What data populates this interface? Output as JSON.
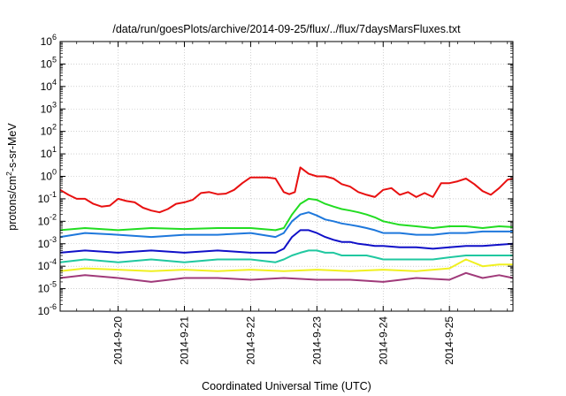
{
  "chart_data": {
    "type": "line",
    "title": "/data/run/goesPlots/archive/2014-09-25/flux/../flux/7daysMarsFluxes.txt",
    "xlabel": "Coordinated Universal Time (UTC)",
    "ylabel": {
      "prefix": "protons/cm",
      "sup": "2",
      "suffix": "-s-sr-MeV"
    },
    "x_range": [
      "2014-09-19T03:00",
      "2014-09-25T23:00"
    ],
    "x_ticks": [
      "2014-9-20",
      "2014-9-21",
      "2014-9-22",
      "2014-9-23",
      "2014-9-24",
      "2014-9-25"
    ],
    "y_scale": "log",
    "ylim": [
      1e-06,
      1000000.0
    ],
    "y_ticks": [
      {
        "base": "10",
        "exp": "-6"
      },
      {
        "base": "10",
        "exp": "-5"
      },
      {
        "base": "10",
        "exp": "-4"
      },
      {
        "base": "10",
        "exp": "-3"
      },
      {
        "base": "10",
        "exp": "-2"
      },
      {
        "base": "10",
        "exp": "-1"
      },
      {
        "base": "10",
        "exp": "0"
      },
      {
        "base": "10",
        "exp": "1"
      },
      {
        "base": "10",
        "exp": "2"
      },
      {
        "base": "10",
        "exp": "3"
      },
      {
        "base": "10",
        "exp": "4"
      },
      {
        "base": "10",
        "exp": "5"
      },
      {
        "base": "10",
        "exp": "6"
      }
    ],
    "grid": true,
    "legend": "none",
    "series": [
      {
        "color": "#e81010",
        "x": [
          "2014-09-19T03:00",
          "2014-09-19T06:00",
          "2014-09-19T09:00",
          "2014-09-19T12:00",
          "2014-09-19T15:00",
          "2014-09-19T18:00",
          "2014-09-19T21:00",
          "2014-09-20T00:00",
          "2014-09-20T03:00",
          "2014-09-20T06:00",
          "2014-09-20T09:00",
          "2014-09-20T12:00",
          "2014-09-20T15:00",
          "2014-09-20T18:00",
          "2014-09-20T21:00",
          "2014-09-21T00:00",
          "2014-09-21T03:00",
          "2014-09-21T06:00",
          "2014-09-21T09:00",
          "2014-09-21T12:00",
          "2014-09-21T15:00",
          "2014-09-21T18:00",
          "2014-09-21T21:00",
          "2014-09-22T00:00",
          "2014-09-22T03:00",
          "2014-09-22T06:00",
          "2014-09-22T09:00",
          "2014-09-22T12:00",
          "2014-09-22T14:00",
          "2014-09-22T16:00",
          "2014-09-22T18:00",
          "2014-09-22T21:00",
          "2014-09-23T00:00",
          "2014-09-23T03:00",
          "2014-09-23T06:00",
          "2014-09-23T09:00",
          "2014-09-23T12:00",
          "2014-09-23T15:00",
          "2014-09-23T18:00",
          "2014-09-23T21:00",
          "2014-09-24T00:00",
          "2014-09-24T03:00",
          "2014-09-24T06:00",
          "2014-09-24T09:00",
          "2014-09-24T12:00",
          "2014-09-24T15:00",
          "2014-09-24T18:00",
          "2014-09-24T21:00",
          "2014-09-25T00:00",
          "2014-09-25T03:00",
          "2014-09-25T06:00",
          "2014-09-25T09:00",
          "2014-09-25T12:00",
          "2014-09-25T15:00",
          "2014-09-25T18:00",
          "2014-09-25T21:00",
          "2014-09-25T23:00"
        ],
        "y": [
          0.25,
          0.15,
          0.1,
          0.1,
          0.06,
          0.045,
          0.05,
          0.1,
          0.08,
          0.07,
          0.04,
          0.03,
          0.025,
          0.035,
          0.06,
          0.07,
          0.09,
          0.18,
          0.2,
          0.16,
          0.17,
          0.25,
          0.5,
          0.9,
          0.9,
          0.9,
          0.8,
          0.2,
          0.16,
          0.2,
          2.5,
          1.3,
          1.0,
          1.0,
          0.8,
          0.45,
          0.35,
          0.2,
          0.15,
          0.12,
          0.25,
          0.3,
          0.15,
          0.2,
          0.12,
          0.18,
          0.12,
          0.5,
          0.5,
          0.6,
          0.8,
          0.45,
          0.22,
          0.15,
          0.3,
          0.7,
          0.8
        ]
      },
      {
        "color": "#22dd22",
        "x": [
          "2014-09-19T03:00",
          "2014-09-19T12:00",
          "2014-09-20T00:00",
          "2014-09-20T12:00",
          "2014-09-21T00:00",
          "2014-09-21T12:00",
          "2014-09-22T00:00",
          "2014-09-22T09:00",
          "2014-09-22T12:00",
          "2014-09-22T15:00",
          "2014-09-22T18:00",
          "2014-09-22T21:00",
          "2014-09-23T00:00",
          "2014-09-23T03:00",
          "2014-09-23T06:00",
          "2014-09-23T09:00",
          "2014-09-23T12:00",
          "2014-09-23T15:00",
          "2014-09-23T18:00",
          "2014-09-23T21:00",
          "2014-09-24T00:00",
          "2014-09-24T06:00",
          "2014-09-24T12:00",
          "2014-09-24T18:00",
          "2014-09-25T00:00",
          "2014-09-25T06:00",
          "2014-09-25T12:00",
          "2014-09-25T18:00",
          "2014-09-25T23:00"
        ],
        "y": [
          0.004,
          0.005,
          0.004,
          0.005,
          0.0045,
          0.005,
          0.005,
          0.004,
          0.005,
          0.02,
          0.06,
          0.1,
          0.09,
          0.06,
          0.045,
          0.035,
          0.03,
          0.025,
          0.02,
          0.015,
          0.01,
          0.007,
          0.006,
          0.005,
          0.006,
          0.006,
          0.005,
          0.006,
          0.0055
        ]
      },
      {
        "color": "#1e78dc",
        "x": [
          "2014-09-19T03:00",
          "2014-09-19T12:00",
          "2014-09-20T00:00",
          "2014-09-20T12:00",
          "2014-09-21T00:00",
          "2014-09-21T12:00",
          "2014-09-22T00:00",
          "2014-09-22T09:00",
          "2014-09-22T12:00",
          "2014-09-22T15:00",
          "2014-09-22T18:00",
          "2014-09-22T21:00",
          "2014-09-23T00:00",
          "2014-09-23T03:00",
          "2014-09-23T06:00",
          "2014-09-23T09:00",
          "2014-09-23T12:00",
          "2014-09-23T15:00",
          "2014-09-23T18:00",
          "2014-09-23T21:00",
          "2014-09-24T00:00",
          "2014-09-24T06:00",
          "2014-09-24T12:00",
          "2014-09-24T18:00",
          "2014-09-25T00:00",
          "2014-09-25T06:00",
          "2014-09-25T12:00",
          "2014-09-25T18:00",
          "2014-09-25T23:00"
        ],
        "y": [
          0.002,
          0.003,
          0.0025,
          0.002,
          0.0025,
          0.0025,
          0.003,
          0.002,
          0.003,
          0.01,
          0.02,
          0.025,
          0.018,
          0.012,
          0.01,
          0.008,
          0.007,
          0.006,
          0.005,
          0.004,
          0.003,
          0.003,
          0.0025,
          0.0025,
          0.003,
          0.003,
          0.0035,
          0.0035,
          0.0035
        ]
      },
      {
        "color": "#1010c8",
        "x": [
          "2014-09-19T03:00",
          "2014-09-19T12:00",
          "2014-09-20T00:00",
          "2014-09-20T12:00",
          "2014-09-21T00:00",
          "2014-09-21T12:00",
          "2014-09-22T00:00",
          "2014-09-22T09:00",
          "2014-09-22T12:00",
          "2014-09-22T15:00",
          "2014-09-22T18:00",
          "2014-09-22T21:00",
          "2014-09-23T00:00",
          "2014-09-23T03:00",
          "2014-09-23T06:00",
          "2014-09-23T09:00",
          "2014-09-23T12:00",
          "2014-09-23T15:00",
          "2014-09-23T18:00",
          "2014-09-23T21:00",
          "2014-09-24T00:00",
          "2014-09-24T06:00",
          "2014-09-24T12:00",
          "2014-09-24T18:00",
          "2014-09-25T00:00",
          "2014-09-25T06:00",
          "2014-09-25T12:00",
          "2014-09-25T18:00",
          "2014-09-25T23:00"
        ],
        "y": [
          0.0004,
          0.0005,
          0.0004,
          0.0005,
          0.0004,
          0.0005,
          0.0004,
          0.0004,
          0.0006,
          0.002,
          0.004,
          0.004,
          0.003,
          0.002,
          0.0015,
          0.0012,
          0.0012,
          0.001,
          0.0009,
          0.0008,
          0.0008,
          0.0007,
          0.0007,
          0.0006,
          0.0007,
          0.0008,
          0.0008,
          0.0009,
          0.001
        ]
      },
      {
        "color": "#20c8a0",
        "x": [
          "2014-09-19T03:00",
          "2014-09-19T12:00",
          "2014-09-20T00:00",
          "2014-09-20T12:00",
          "2014-09-21T00:00",
          "2014-09-21T12:00",
          "2014-09-22T00:00",
          "2014-09-22T09:00",
          "2014-09-22T12:00",
          "2014-09-22T15:00",
          "2014-09-22T18:00",
          "2014-09-22T21:00",
          "2014-09-23T00:00",
          "2014-09-23T03:00",
          "2014-09-23T06:00",
          "2014-09-23T09:00",
          "2014-09-23T12:00",
          "2014-09-23T15:00",
          "2014-09-23T18:00",
          "2014-09-23T21:00",
          "2014-09-24T00:00",
          "2014-09-24T06:00",
          "2014-09-24T12:00",
          "2014-09-24T18:00",
          "2014-09-25T00:00",
          "2014-09-25T06:00",
          "2014-09-25T12:00",
          "2014-09-25T18:00",
          "2014-09-25T23:00"
        ],
        "y": [
          0.00015,
          0.0002,
          0.00015,
          0.0002,
          0.00015,
          0.0002,
          0.0002,
          0.00015,
          0.0002,
          0.0003,
          0.0004,
          0.0005,
          0.0005,
          0.0004,
          0.0004,
          0.0003,
          0.0003,
          0.0003,
          0.0003,
          0.00025,
          0.0002,
          0.0002,
          0.0002,
          0.0002,
          0.00025,
          0.0003,
          0.0003,
          0.0003,
          0.0003
        ]
      },
      {
        "color": "#f0f020",
        "x": [
          "2014-09-19T03:00",
          "2014-09-19T12:00",
          "2014-09-20T00:00",
          "2014-09-20T12:00",
          "2014-09-21T00:00",
          "2014-09-21T12:00",
          "2014-09-22T00:00",
          "2014-09-22T12:00",
          "2014-09-23T00:00",
          "2014-09-23T12:00",
          "2014-09-24T00:00",
          "2014-09-24T12:00",
          "2014-09-25T00:00",
          "2014-09-25T06:00",
          "2014-09-25T12:00",
          "2014-09-25T18:00",
          "2014-09-25T23:00"
        ],
        "y": [
          6e-05,
          8e-05,
          7e-05,
          6e-05,
          7e-05,
          6e-05,
          7e-05,
          6e-05,
          7e-05,
          6e-05,
          7e-05,
          6e-05,
          8e-05,
          0.0002,
          0.0001,
          0.00012,
          0.00012
        ]
      },
      {
        "color": "#a03a7a",
        "x": [
          "2014-09-19T03:00",
          "2014-09-19T12:00",
          "2014-09-20T00:00",
          "2014-09-20T12:00",
          "2014-09-21T00:00",
          "2014-09-21T12:00",
          "2014-09-22T00:00",
          "2014-09-22T12:00",
          "2014-09-23T00:00",
          "2014-09-23T12:00",
          "2014-09-24T00:00",
          "2014-09-24T12:00",
          "2014-09-25T00:00",
          "2014-09-25T06:00",
          "2014-09-25T12:00",
          "2014-09-25T18:00",
          "2014-09-25T23:00"
        ],
        "y": [
          3e-05,
          4e-05,
          3e-05,
          2e-05,
          3e-05,
          3e-05,
          2.5e-05,
          3e-05,
          2.5e-05,
          2.5e-05,
          2e-05,
          3e-05,
          2.5e-05,
          5e-05,
          3e-05,
          4e-05,
          3e-05
        ]
      }
    ]
  }
}
